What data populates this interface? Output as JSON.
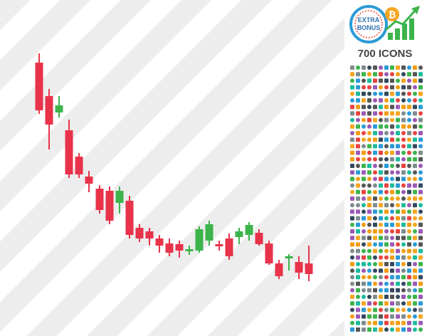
{
  "badge": {
    "line1": "EXTRA",
    "line2": "BONUS"
  },
  "caption": "700 ICONS"
}
